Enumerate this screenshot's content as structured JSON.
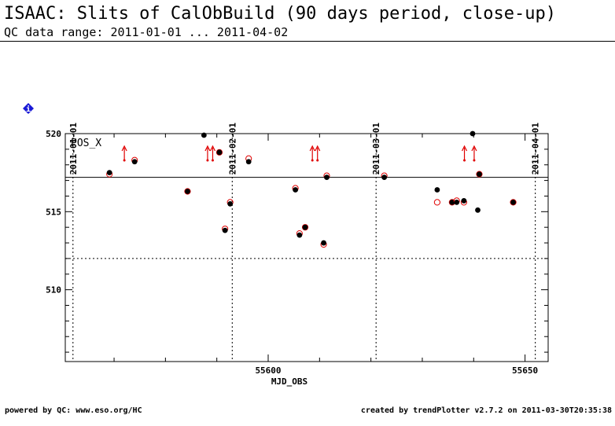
{
  "header": {
    "title": "ISAAC: Slits of CalObBuild (90 days period, close-up)",
    "subtitle": "QC data range: 2011-01-01 ... 2011-04-02"
  },
  "footer": {
    "left": "powered by QC: www.eso.org/HC",
    "right": "created by trendPlotter v2.7.2 on 2011-03-30T20:35:38"
  },
  "info_badge": {
    "glyph": "i",
    "color": "#1a1ad6"
  },
  "chart_data": {
    "type": "scatter",
    "panel_label": "POS_X",
    "xlabel": "MJD_OBS",
    "ylabel": "",
    "xlim": [
      55560.5,
      55654.5
    ],
    "ylim": [
      505.4,
      520.0
    ],
    "x_ticks": [
      55600,
      55650
    ],
    "y_ticks": [
      510,
      515,
      520
    ],
    "date_markers": [
      {
        "label": "2011-01-01",
        "mjd": 55562
      },
      {
        "label": "2011-02-01",
        "mjd": 55593
      },
      {
        "label": "2011-03-01",
        "mjd": 55621
      },
      {
        "label": "2011-04-01",
        "mjd": 55652
      }
    ],
    "reference_line": 517.2,
    "threshold_line": 512.0,
    "colors": {
      "measured": "#000000",
      "reference": "#e00000",
      "axes": "#000000"
    },
    "series": [
      {
        "points": [
          {
            "x": 55569.1,
            "y": 517.5,
            "ref": 517.4
          },
          {
            "x": 55574.0,
            "y": 518.2,
            "ref": 518.3
          },
          {
            "x": 55584.3,
            "y": 516.3,
            "ref": 516.3
          },
          {
            "x": 55587.5,
            "y": 519.9,
            "ref": null
          },
          {
            "x": 55590.5,
            "y": 518.8,
            "ref": 518.8
          },
          {
            "x": 55591.6,
            "y": 513.8,
            "ref": 513.9
          },
          {
            "x": 55592.6,
            "y": 515.5,
            "ref": 515.6
          },
          {
            "x": 55596.2,
            "y": 518.2,
            "ref": 518.4
          },
          {
            "x": 55605.3,
            "y": 516.4,
            "ref": 516.5
          },
          {
            "x": 55606.1,
            "y": 513.5,
            "ref": 513.6
          },
          {
            "x": 55607.2,
            "y": 514.0,
            "ref": 514.0
          },
          {
            "x": 55610.8,
            "y": 513.0,
            "ref": 512.9
          },
          {
            "x": 55611.4,
            "y": 517.2,
            "ref": 517.3
          },
          {
            "x": 55622.6,
            "y": 517.2,
            "ref": 517.3
          },
          {
            "x": 55632.9,
            "y": 516.4,
            "ref": 515.6
          },
          {
            "x": 55635.8,
            "y": 515.6,
            "ref": 515.6
          },
          {
            "x": 55636.7,
            "y": 515.6,
            "ref": 515.7
          },
          {
            "x": 55638.1,
            "y": 515.7,
            "ref": 515.6
          },
          {
            "x": 55639.8,
            "y": 520.0,
            "ref": null
          },
          {
            "x": 55640.8,
            "y": 515.1,
            "ref": null
          },
          {
            "x": 55641.1,
            "y": 517.4,
            "ref": 517.4
          },
          {
            "x": 55647.7,
            "y": 515.6,
            "ref": 515.6
          }
        ]
      }
    ],
    "out_of_range_arrows": [
      55572.0,
      55588.2,
      55589.2,
      55608.6,
      55609.6,
      55638.2,
      55640.1
    ]
  }
}
